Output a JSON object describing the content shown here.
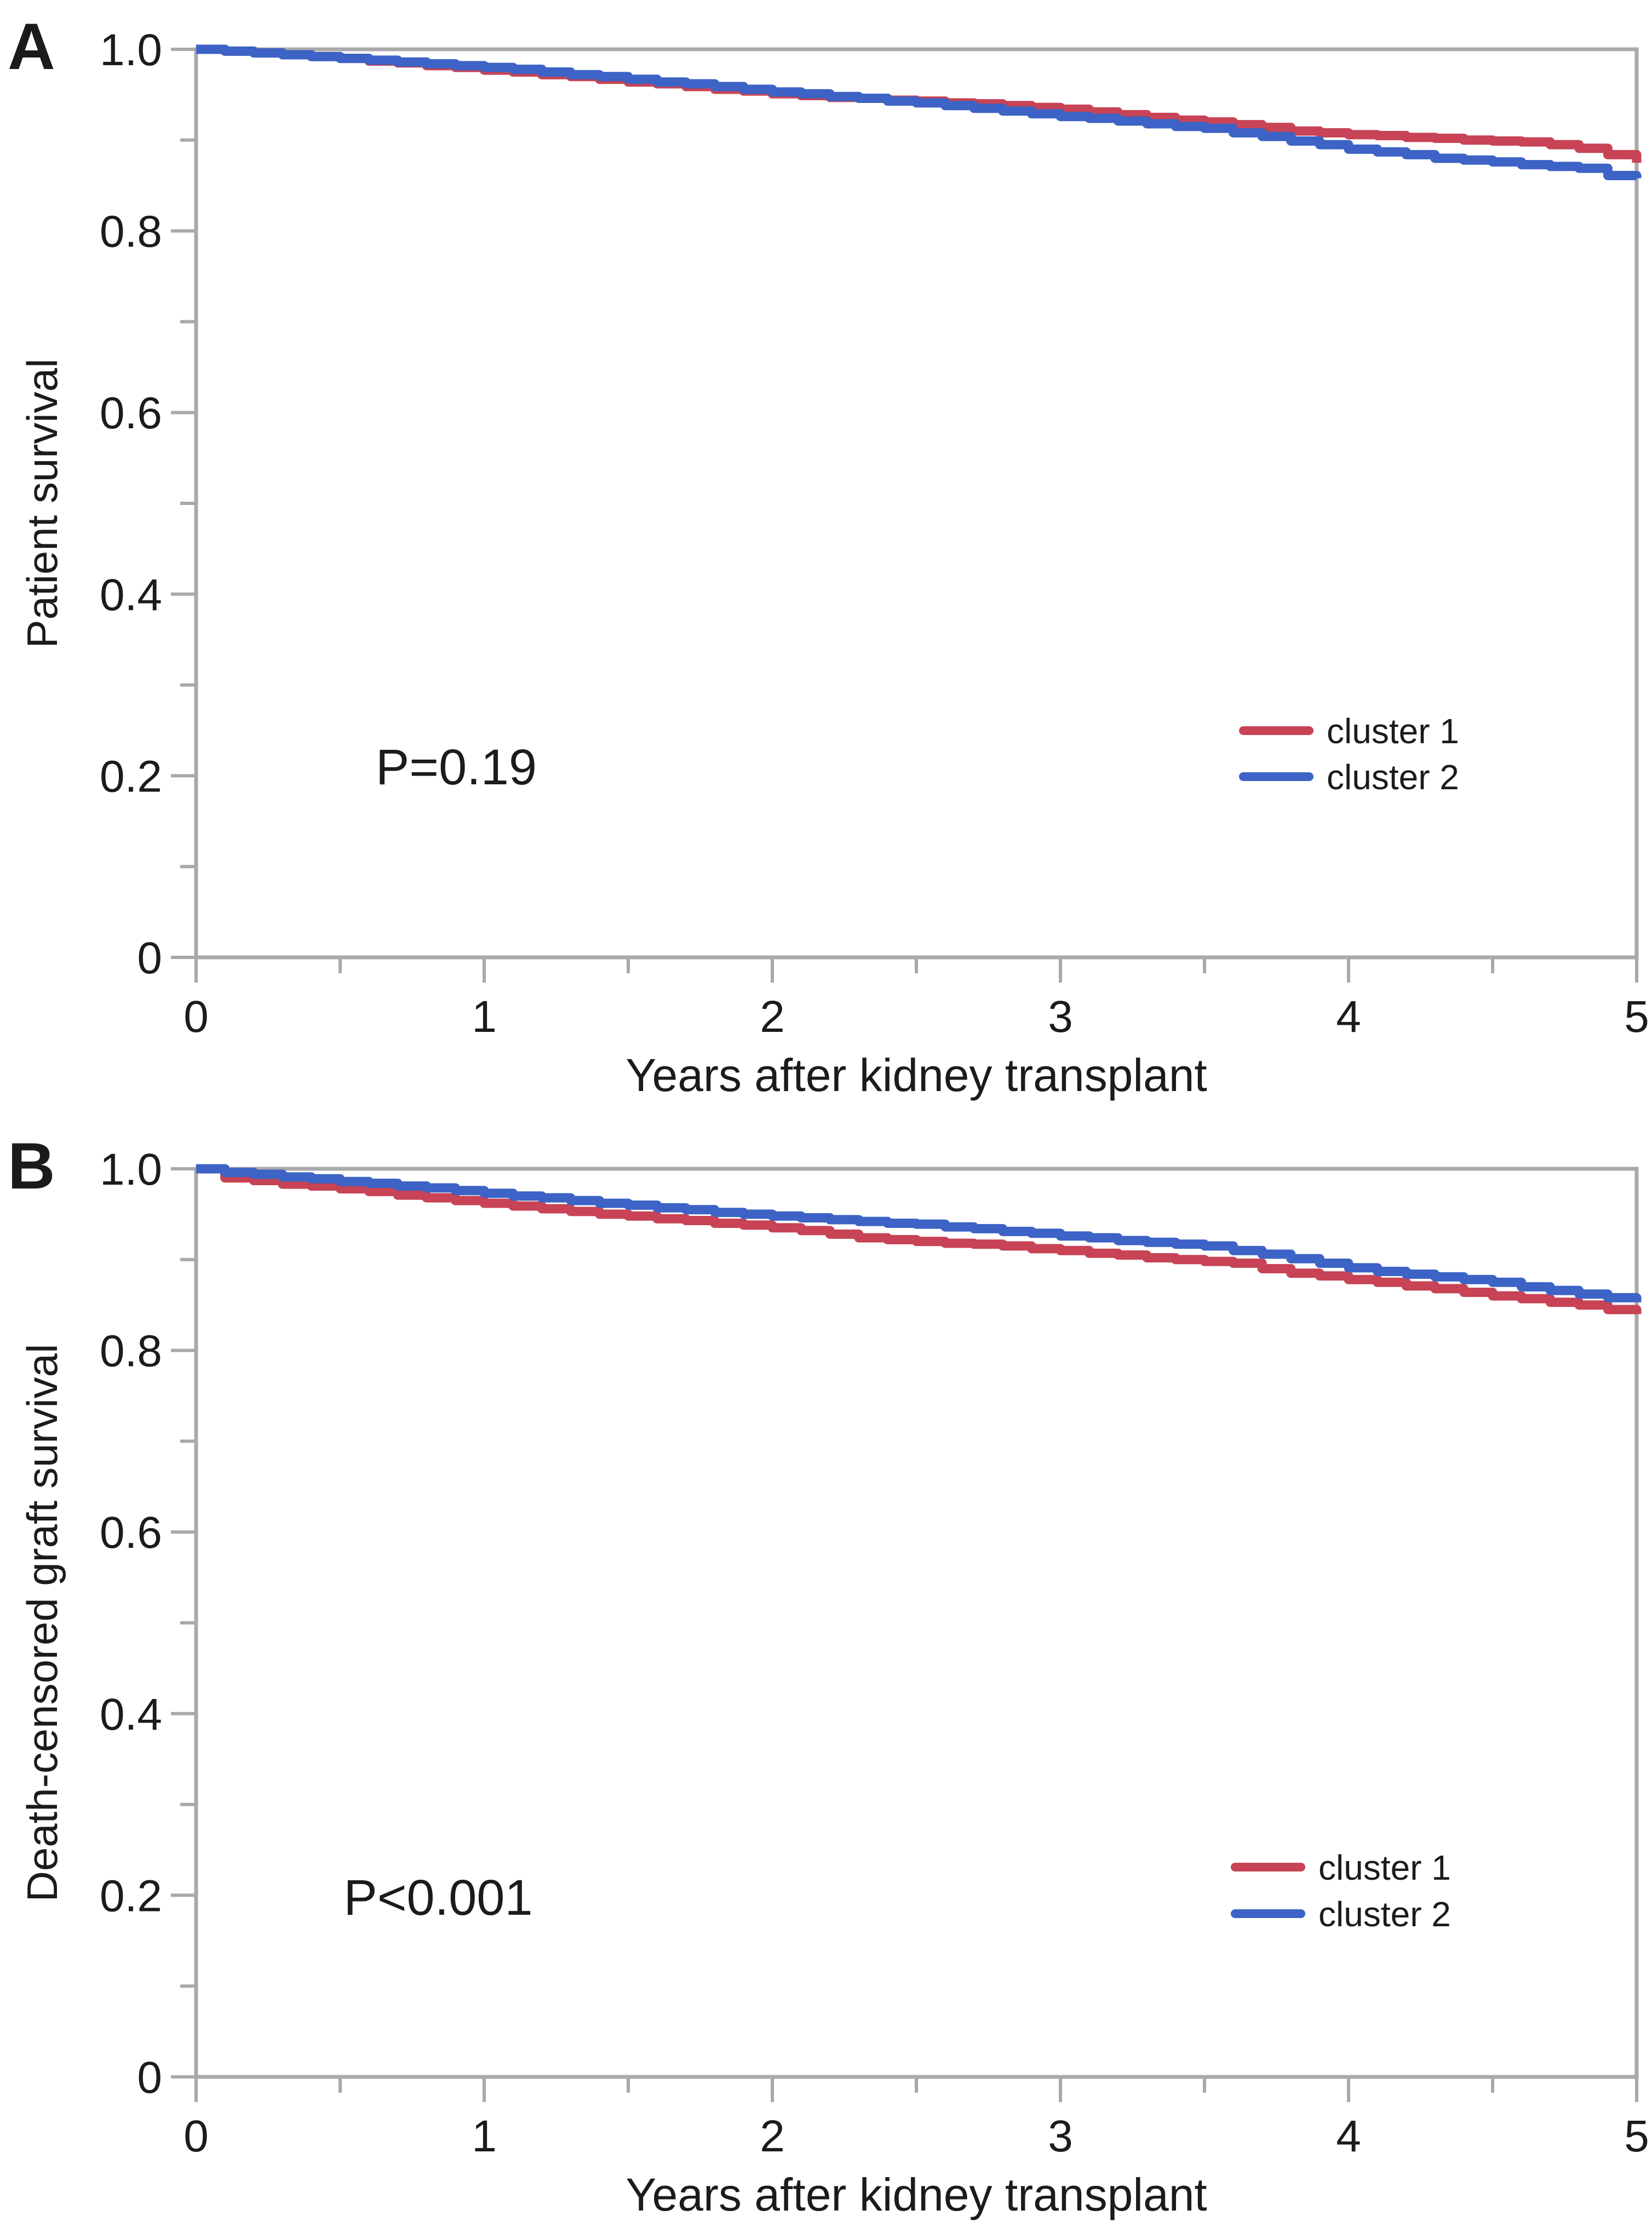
{
  "figure": {
    "background": "#ffffff",
    "axis_color": "#a9a9a9",
    "text_color": "#1b1b1b",
    "panels": [
      {
        "panel_label": "A",
        "p_value_text": "P=0.19",
        "ylabel": "Patient survival",
        "xlabel": "Years after kidney transplant",
        "legend_labels": [
          "cluster 1",
          "cluster 2"
        ]
      },
      {
        "panel_label": "B",
        "p_value_text": "P<0.001",
        "ylabel": "Death-censored graft survival",
        "xlabel": "Years after kidney transplant",
        "legend_labels": [
          "cluster 1",
          "cluster 2"
        ]
      }
    ]
  },
  "chart_data": [
    {
      "type": "line",
      "subtype": "kaplan_meier_step",
      "panel": "A",
      "title": "",
      "xlabel": "Years after kidney transplant",
      "ylabel": "Patient survival",
      "xlim": [
        0,
        5
      ],
      "ylim": [
        0,
        1.0
      ],
      "xticks_major": [
        0,
        1,
        2,
        3,
        4,
        5
      ],
      "xtick_labels": [
        "0",
        "1",
        "2",
        "3",
        "4",
        "5"
      ],
      "xticks_minor": [
        0.5,
        1.5,
        2.5,
        3.5,
        4.5
      ],
      "yticks_major": [
        0,
        0.2,
        0.4,
        0.6,
        0.8,
        1.0
      ],
      "ytick_labels": [
        "0",
        "0.2",
        "0.4",
        "0.6",
        "0.8",
        "1.0"
      ],
      "yticks_minor": [
        0.1,
        0.3,
        0.5,
        0.7,
        0.9
      ],
      "grid": false,
      "annotation": {
        "text": "P=0.19"
      },
      "legend_position": "right-center",
      "x": [
        0,
        0.1,
        0.2,
        0.3,
        0.4,
        0.5,
        0.6,
        0.7,
        0.8,
        0.9,
        1.0,
        1.1,
        1.2,
        1.3,
        1.4,
        1.5,
        1.6,
        1.7,
        1.8,
        1.9,
        2.0,
        2.1,
        2.2,
        2.3,
        2.4,
        2.5,
        2.6,
        2.7,
        2.8,
        2.9,
        3.0,
        3.1,
        3.2,
        3.3,
        3.4,
        3.5,
        3.6,
        3.7,
        3.8,
        3.9,
        4.0,
        4.1,
        4.2,
        4.3,
        4.4,
        4.5,
        4.6,
        4.7,
        4.8,
        4.9,
        5.0
      ],
      "series": [
        {
          "name": "cluster 1",
          "color": "#c74355",
          "values": [
            1.0,
            0.998,
            0.996,
            0.994,
            0.992,
            0.99,
            0.987,
            0.985,
            0.982,
            0.98,
            0.977,
            0.975,
            0.972,
            0.97,
            0.967,
            0.964,
            0.962,
            0.959,
            0.956,
            0.954,
            0.951,
            0.949,
            0.947,
            0.946,
            0.944,
            0.943,
            0.941,
            0.94,
            0.938,
            0.936,
            0.934,
            0.931,
            0.928,
            0.925,
            0.922,
            0.92,
            0.917,
            0.914,
            0.91,
            0.908,
            0.906,
            0.905,
            0.903,
            0.902,
            0.9,
            0.899,
            0.898,
            0.895,
            0.891,
            0.884,
            0.875
          ]
        },
        {
          "name": "cluster 2",
          "color": "#3c63c5",
          "values": [
            1.0,
            0.998,
            0.996,
            0.994,
            0.992,
            0.99,
            0.988,
            0.986,
            0.984,
            0.982,
            0.98,
            0.978,
            0.975,
            0.972,
            0.97,
            0.967,
            0.964,
            0.962,
            0.959,
            0.956,
            0.953,
            0.951,
            0.948,
            0.946,
            0.943,
            0.941,
            0.938,
            0.935,
            0.932,
            0.929,
            0.926,
            0.924,
            0.921,
            0.918,
            0.915,
            0.913,
            0.908,
            0.904,
            0.899,
            0.895,
            0.89,
            0.887,
            0.884,
            0.88,
            0.878,
            0.876,
            0.873,
            0.871,
            0.869,
            0.861,
            0.858
          ]
        }
      ]
    },
    {
      "type": "line",
      "subtype": "kaplan_meier_step",
      "panel": "B",
      "title": "",
      "xlabel": "Years after kidney transplant",
      "ylabel": "Death-censored graft survival",
      "xlim": [
        0,
        5
      ],
      "ylim": [
        0,
        1.0
      ],
      "xticks_major": [
        0,
        1,
        2,
        3,
        4,
        5
      ],
      "xtick_labels": [
        "0",
        "1",
        "2",
        "3",
        "4",
        "5"
      ],
      "xticks_minor": [
        0.5,
        1.5,
        2.5,
        3.5,
        4.5
      ],
      "yticks_major": [
        0,
        0.2,
        0.4,
        0.6,
        0.8,
        1.0
      ],
      "ytick_labels": [
        "0",
        "0.2",
        "0.4",
        "0.6",
        "0.8",
        "1.0"
      ],
      "yticks_minor": [
        0.1,
        0.3,
        0.5,
        0.7,
        0.9
      ],
      "grid": false,
      "annotation": {
        "text": "P<0.001"
      },
      "legend_position": "right-center",
      "x": [
        0,
        0.1,
        0.2,
        0.3,
        0.4,
        0.5,
        0.6,
        0.7,
        0.8,
        0.9,
        1.0,
        1.1,
        1.2,
        1.3,
        1.4,
        1.5,
        1.6,
        1.7,
        1.8,
        1.9,
        2.0,
        2.1,
        2.2,
        2.3,
        2.4,
        2.5,
        2.6,
        2.7,
        2.8,
        2.9,
        3.0,
        3.1,
        3.2,
        3.3,
        3.4,
        3.5,
        3.6,
        3.7,
        3.8,
        3.9,
        4.0,
        4.1,
        4.2,
        4.3,
        4.4,
        4.5,
        4.6,
        4.7,
        4.8,
        4.9,
        5.0
      ],
      "series": [
        {
          "name": "cluster 1",
          "color": "#c74355",
          "values": [
            1.0,
            0.99,
            0.987,
            0.983,
            0.981,
            0.978,
            0.975,
            0.971,
            0.968,
            0.965,
            0.962,
            0.959,
            0.956,
            0.953,
            0.95,
            0.948,
            0.945,
            0.943,
            0.94,
            0.938,
            0.935,
            0.932,
            0.928,
            0.924,
            0.922,
            0.92,
            0.918,
            0.917,
            0.915,
            0.912,
            0.91,
            0.907,
            0.905,
            0.902,
            0.9,
            0.898,
            0.896,
            0.89,
            0.885,
            0.882,
            0.878,
            0.875,
            0.871,
            0.868,
            0.864,
            0.86,
            0.857,
            0.853,
            0.85,
            0.845,
            0.84
          ]
        },
        {
          "name": "cluster 2",
          "color": "#3c63c5",
          "values": [
            1.0,
            0.996,
            0.994,
            0.991,
            0.989,
            0.986,
            0.984,
            0.981,
            0.979,
            0.976,
            0.973,
            0.97,
            0.968,
            0.965,
            0.962,
            0.96,
            0.957,
            0.955,
            0.952,
            0.95,
            0.948,
            0.946,
            0.944,
            0.942,
            0.94,
            0.939,
            0.936,
            0.934,
            0.931,
            0.929,
            0.926,
            0.924,
            0.921,
            0.919,
            0.917,
            0.915,
            0.91,
            0.906,
            0.901,
            0.896,
            0.891,
            0.887,
            0.884,
            0.881,
            0.878,
            0.875,
            0.87,
            0.866,
            0.862,
            0.858,
            0.853
          ]
        }
      ]
    }
  ]
}
